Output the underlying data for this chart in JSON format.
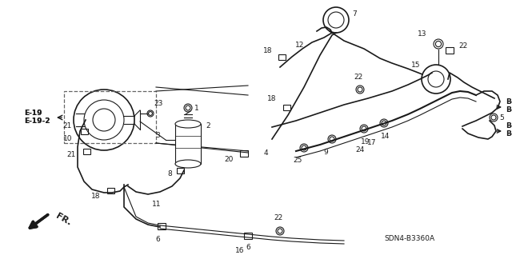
{
  "background_color": "#ffffff",
  "diagram_code": "SDN4-B3360A",
  "fig_width": 6.4,
  "fig_height": 3.19,
  "dpi": 100,
  "line_color": "#1a1a1a",
  "label_fontsize": 6.5,
  "partnum_fontsize": 6.5
}
